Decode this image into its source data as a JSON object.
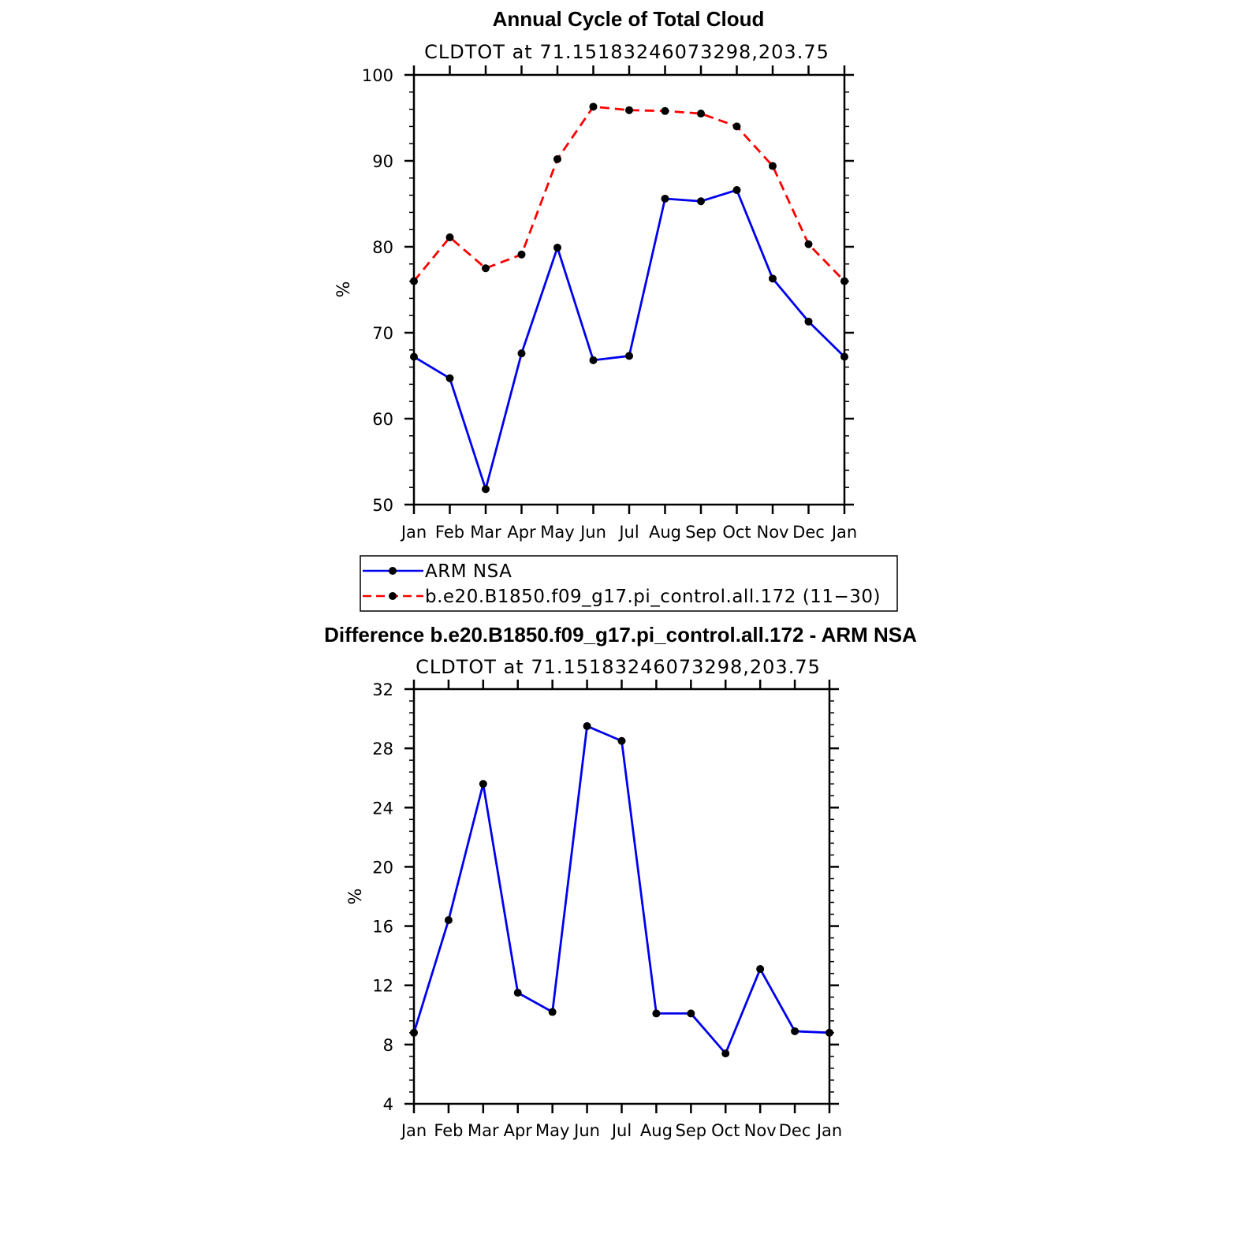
{
  "chart_data": [
    {
      "type": "line",
      "title": "Annual Cycle of Total Cloud",
      "subtitle": "CLDTOT at 71.15183246073298,203.75",
      "xlabel": "",
      "ylabel": "%",
      "categories": [
        "Jan",
        "Feb",
        "Mar",
        "Apr",
        "May",
        "Jun",
        "Jul",
        "Aug",
        "Sep",
        "Oct",
        "Nov",
        "Dec",
        "Jan"
      ],
      "ylim": [
        50,
        100
      ],
      "yticks": [
        50,
        60,
        70,
        80,
        90,
        100
      ],
      "series": [
        {
          "name": "ARM NSA",
          "color": "#0000ee",
          "dash": "solid",
          "values": [
            67.2,
            64.7,
            51.8,
            67.6,
            79.9,
            66.8,
            67.3,
            85.6,
            85.3,
            86.6,
            76.3,
            71.3,
            67.2
          ]
        },
        {
          "name": "b.e20.B1850.f09_g17.pi_control.all.172 (11−30)",
          "color": "#ff0000",
          "dash": "dashed",
          "values": [
            76.0,
            81.1,
            77.5,
            79.1,
            90.2,
            96.3,
            95.9,
            95.8,
            95.5,
            94.0,
            89.4,
            80.3,
            76.0
          ]
        }
      ]
    },
    {
      "type": "line",
      "title": "Difference b.e20.B1850.f09_g17.pi_control.all.172 - ARM NSA",
      "subtitle": "CLDTOT at 71.15183246073298,203.75",
      "xlabel": "",
      "ylabel": "%",
      "categories": [
        "Jan",
        "Feb",
        "Mar",
        "Apr",
        "May",
        "Jun",
        "Jul",
        "Aug",
        "Sep",
        "Oct",
        "Nov",
        "Dec",
        "Jan"
      ],
      "ylim": [
        4,
        32
      ],
      "yticks": [
        4,
        8,
        12,
        16,
        20,
        24,
        28,
        32
      ],
      "series": [
        {
          "name": "Difference",
          "color": "#0000ee",
          "dash": "solid",
          "values": [
            8.8,
            16.4,
            25.6,
            11.5,
            10.2,
            29.5,
            28.5,
            10.1,
            10.1,
            7.4,
            13.1,
            8.9,
            8.8
          ]
        }
      ]
    }
  ]
}
